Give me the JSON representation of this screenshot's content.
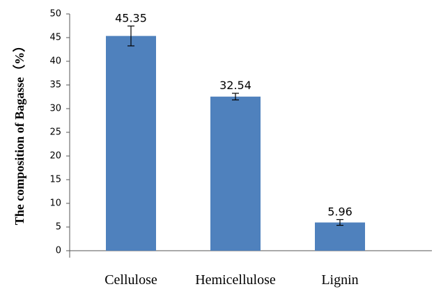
{
  "chart_data": {
    "type": "bar",
    "ylabel": "The composition of Bagasse（%）",
    "categories": [
      "Cellulose",
      "Hemicellulose",
      "Lignin"
    ],
    "values": [
      45.35,
      32.54,
      5.96
    ],
    "errors": [
      2.1,
      0.7,
      0.6
    ],
    "color": "#4f81bd",
    "ylim": [
      0,
      50
    ],
    "yticks": [
      0,
      5,
      10,
      15,
      20,
      25,
      30,
      35,
      40,
      45,
      50
    ]
  }
}
